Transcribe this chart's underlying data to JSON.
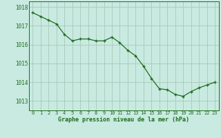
{
  "x": [
    0,
    1,
    2,
    3,
    4,
    5,
    6,
    7,
    8,
    9,
    10,
    11,
    12,
    13,
    14,
    15,
    16,
    17,
    18,
    19,
    20,
    21,
    22,
    23
  ],
  "y": [
    1017.7,
    1017.5,
    1017.3,
    1017.1,
    1016.55,
    1016.2,
    1016.3,
    1016.3,
    1016.2,
    1016.2,
    1016.4,
    1016.1,
    1015.7,
    1015.4,
    1014.85,
    1014.2,
    1013.65,
    1013.6,
    1013.35,
    1013.25,
    1013.5,
    1013.7,
    1013.85,
    1014.0
  ],
  "line_color": "#1e6b1e",
  "marker": "+",
  "marker_size": 3.5,
  "marker_lw": 1.0,
  "line_width": 0.9,
  "bg_color": "#c8eae0",
  "plot_bg_color": "#c8eae0",
  "grid_color": "#a8c8b8",
  "xlabel": "Graphe pression niveau de la mer (hPa)",
  "xlabel_color": "#1e6b1e",
  "tick_color": "#1e6b1e",
  "spine_color": "#1e6b1e",
  "ylim_min": 1012.5,
  "ylim_max": 1018.3,
  "ytick_values": [
    1013,
    1014,
    1015,
    1016,
    1017,
    1018
  ],
  "xtick_values": [
    0,
    1,
    2,
    3,
    4,
    5,
    6,
    7,
    8,
    9,
    10,
    11,
    12,
    13,
    14,
    15,
    16,
    17,
    18,
    19,
    20,
    21,
    22,
    23
  ],
  "ytick_fontsize": 5.5,
  "xtick_fontsize": 5.0,
  "xlabel_fontsize": 6.0
}
